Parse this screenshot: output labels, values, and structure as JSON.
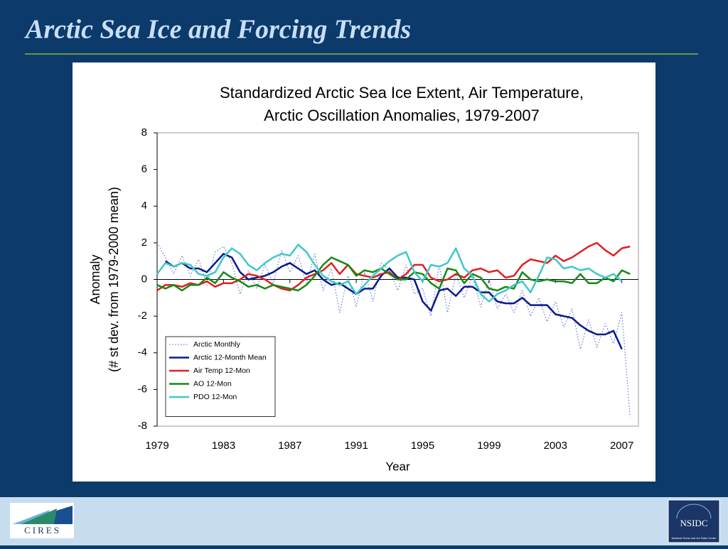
{
  "slide": {
    "title": "Arctic Sea Ice and Forcing Trends",
    "logos": [
      "CIRES",
      "NSIDC",
      "National Snow and Ice Data Center"
    ]
  },
  "chart_data": {
    "type": "line",
    "title": [
      "Standardized Arctic Sea Ice Extent, Air Temperature,",
      "Arctic Oscillation Anomalies, 1979-2007"
    ],
    "x_label": "Year",
    "y_label": [
      "Anomaly",
      "(# st dev. from 1979-2000 mean)"
    ],
    "xlim": [
      1979,
      2008
    ],
    "xticks": [
      1979,
      1983,
      1987,
      1991,
      1995,
      1999,
      2003,
      2007
    ],
    "ylim": [
      -8,
      8
    ],
    "yticks": [
      -8,
      -6,
      -4,
      -2,
      0,
      2,
      4,
      6,
      8
    ],
    "grid": false,
    "legend": "lower left",
    "x": [
      1979,
      1979.5,
      1980,
      1980.5,
      1981,
      1981.5,
      1982,
      1982.5,
      1983,
      1983.5,
      1984,
      1984.5,
      1985,
      1985.5,
      1986,
      1986.5,
      1987,
      1987.5,
      1988,
      1988.5,
      1989,
      1989.5,
      1990,
      1990.5,
      1991,
      1991.5,
      1992,
      1992.5,
      1993,
      1993.5,
      1994,
      1994.5,
      1995,
      1995.5,
      1996,
      1996.5,
      1997,
      1997.5,
      1998,
      1998.5,
      1999,
      1999.5,
      2000,
      2000.5,
      2001,
      2001.5,
      2002,
      2002.5,
      2003,
      2003.5,
      2004,
      2004.5,
      2005,
      2005.5,
      2006,
      2006.5,
      2007,
      2007.5
    ],
    "series": [
      {
        "name": "Arctic Monthly",
        "color": "#4a5ad8",
        "line_style": "dotted",
        "values": [
          2.0,
          1.2,
          0.3,
          1.3,
          0.2,
          1.1,
          -0.3,
          1.5,
          1.8,
          0.9,
          -0.8,
          0.5,
          -0.5,
          0.8,
          -0.2,
          1.6,
          0.4,
          1.3,
          -0.2,
          1.4,
          -0.6,
          0.6,
          -1.8,
          0.2,
          -1.5,
          0.4,
          -1.2,
          0.9,
          0.5,
          -0.6,
          0.8,
          -0.8,
          -0.5,
          -2.0,
          0.8,
          -1.8,
          0.3,
          -1.0,
          0.2,
          -1.5,
          0,
          -1.6,
          -0.8,
          -1.8,
          -0.6,
          -2.0,
          -1.0,
          -2.3,
          -1.2,
          -2.6,
          -1.6,
          -3.8,
          -2.2,
          -3.7,
          -2.4,
          -3.5,
          -1.8,
          -7.5
        ]
      },
      {
        "name": "Arctic 12-Month Mean",
        "color": "#0a1a8a",
        "line_style": "solid",
        "values": [
          null,
          1.0,
          0.7,
          0.9,
          0.6,
          0.6,
          0.4,
          0.9,
          1.4,
          1.2,
          0.4,
          0,
          0.1,
          0.2,
          0.4,
          0.7,
          0.9,
          0.6,
          0.3,
          0.5,
          0,
          -0.3,
          -0.2,
          -0.5,
          -0.8,
          -0.5,
          -0.5,
          0.2,
          0.6,
          0.1,
          0.1,
          0,
          -1.2,
          -1.7,
          -0.6,
          -0.5,
          -0.9,
          -0.4,
          -0.4,
          -0.7,
          -0.7,
          -1.2,
          -1.3,
          -1.3,
          -1.0,
          -1.4,
          -1.4,
          -1.4,
          -1.9,
          -2.0,
          -2.1,
          -2.5,
          -2.8,
          -3.0,
          -3.0,
          -2.8,
          -3.8,
          null
        ]
      },
      {
        "name": "Air Temp 12-Mon",
        "color": "#e02020",
        "line_style": "solid",
        "values": [
          -0.6,
          -0.3,
          -0.3,
          -0.4,
          -0.2,
          -0.3,
          -0.1,
          -0.4,
          -0.2,
          -0.2,
          0,
          0.3,
          0.2,
          0,
          -0.3,
          -0.5,
          -0.6,
          -0.3,
          0.1,
          0.3,
          0.5,
          0.9,
          0.3,
          0.8,
          0.3,
          0.2,
          0.1,
          0.3,
          0.4,
          0,
          0.3,
          0.8,
          0.8,
          0.1,
          -0.1,
          0,
          0.3,
          0.1,
          0.5,
          0.6,
          0.4,
          0.5,
          0.1,
          0.2,
          0.8,
          1.1,
          1.0,
          0.9,
          1.3,
          1.0,
          1.2,
          1.5,
          1.8,
          2.0,
          1.6,
          1.3,
          1.7,
          1.8
        ]
      },
      {
        "name": "AO 12-Mon",
        "color": "#158a15",
        "line_style": "solid",
        "values": [
          -0.3,
          -0.5,
          -0.3,
          -0.6,
          -0.3,
          -0.3,
          0.1,
          -0.2,
          0.4,
          0.1,
          -0.1,
          -0.4,
          -0.3,
          -0.5,
          -0.3,
          -0.4,
          -0.5,
          -0.6,
          -0.3,
          0.2,
          0.8,
          1.2,
          1.0,
          0.8,
          0.2,
          0.5,
          0.4,
          0.6,
          0.3,
          0.0,
          0.0,
          0.4,
          0.3,
          -0.2,
          -0.5,
          0.6,
          0.5,
          -0.2,
          0.3,
          0.1,
          -0.5,
          -0.6,
          -0.4,
          -0.5,
          0.4,
          0.0,
          -0.1,
          0.0,
          -0.1,
          -0.1,
          -0.2,
          0.3,
          -0.2,
          -0.2,
          0.1,
          -0.1,
          0.5,
          0.3
        ]
      },
      {
        "name": "PDO 12-Mon",
        "color": "#40c8c8",
        "line_style": "solid",
        "values": [
          0.3,
          0.9,
          0.7,
          0.9,
          0.8,
          0.3,
          0.2,
          0.4,
          1.2,
          1.7,
          1.4,
          0.8,
          0.5,
          0.9,
          1.2,
          1.4,
          1.3,
          1.9,
          1.5,
          0.8,
          0.2,
          -0.1,
          -0.3,
          -0.1,
          -0.8,
          -0.3,
          0.2,
          0.6,
          1.0,
          1.3,
          1.5,
          0.4,
          -0.1,
          0.8,
          0.7,
          0.9,
          1.7,
          0.6,
          0.2,
          -0.8,
          -1.2,
          -0.8,
          -0.6,
          -0.3,
          -0.1,
          -0.7,
          0.2,
          1.2,
          1.1,
          0.6,
          0.7,
          0.5,
          0.6,
          0.3,
          0.1,
          0.3,
          -0.1,
          null
        ]
      }
    ]
  }
}
